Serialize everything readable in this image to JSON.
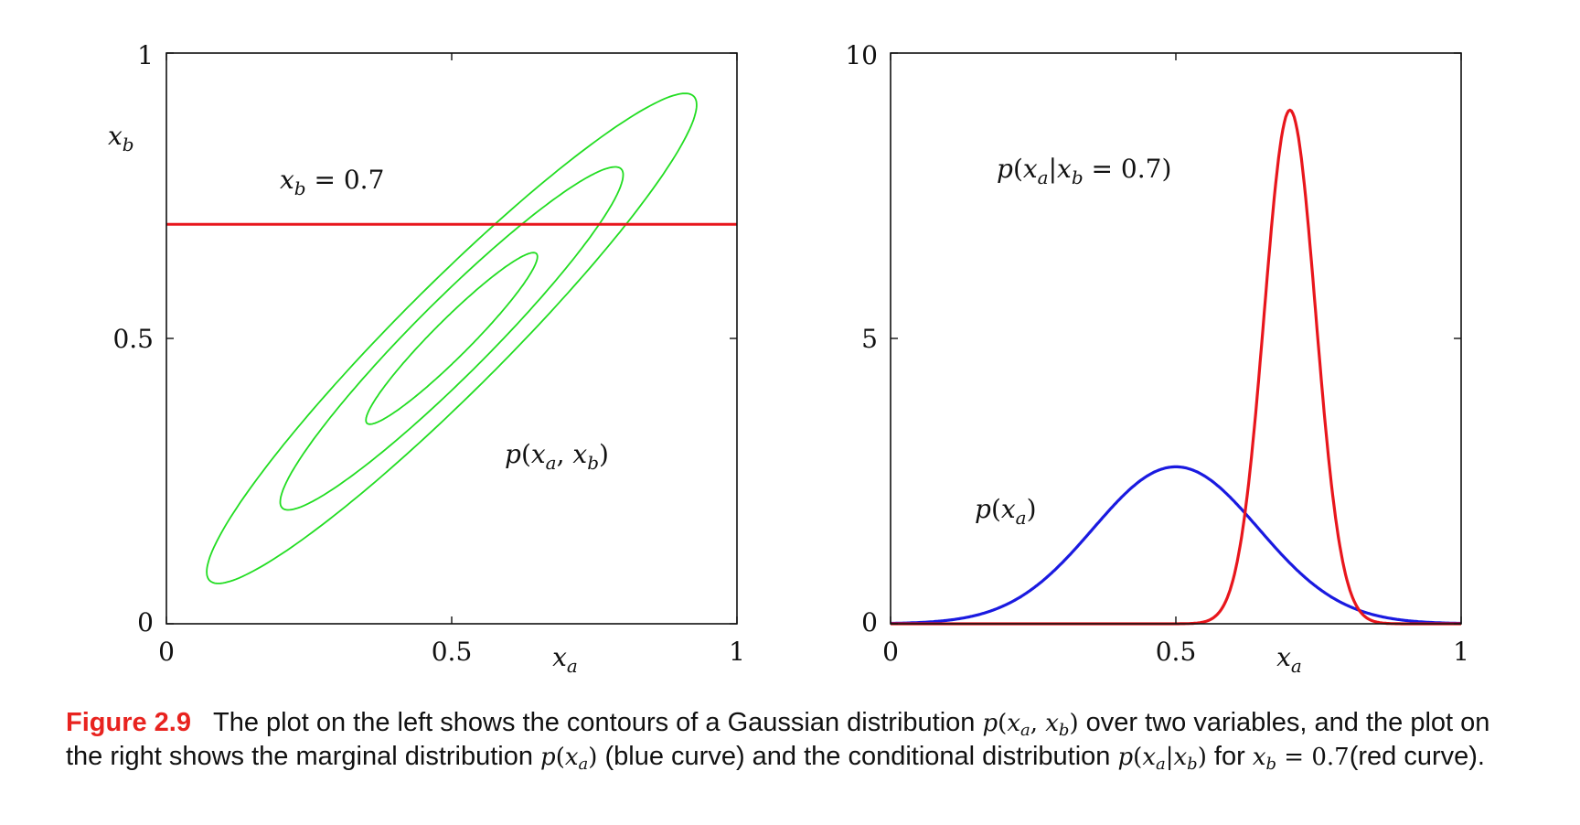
{
  "chart_data": [
    {
      "type": "line",
      "title": "",
      "xlabel": "x_a",
      "ylabel": "x_b",
      "xlim": [
        0,
        1
      ],
      "ylim": [
        0,
        1
      ],
      "xticks": [
        "0",
        "0.5",
        "1"
      ],
      "yticks": [
        "0",
        "0.5",
        "1"
      ],
      "grid": false,
      "contours": {
        "color": "#22dd22",
        "center": [
          0.5,
          0.5
        ],
        "major_axis_angle_deg": 45,
        "major_semi_axes": [
          0.21,
          0.42,
          0.6
        ],
        "axis_ratio": 0.155
      },
      "line_xb": {
        "y": 0.7,
        "color": "#e8161c"
      },
      "annotations": [
        {
          "text": "x_b = 0.7",
          "x": 0.2,
          "y": 0.78
        },
        {
          "text": "p(x_a, x_b)",
          "x": 0.6,
          "y": 0.3
        }
      ]
    },
    {
      "type": "line",
      "title": "",
      "xlabel": "x_a",
      "ylabel": "",
      "xlim": [
        0,
        1
      ],
      "ylim": [
        0,
        10
      ],
      "xticks": [
        "0",
        "0.5",
        "1"
      ],
      "yticks": [
        "0",
        "5",
        "10"
      ],
      "grid": false,
      "series": [
        {
          "label": "p(x_a)",
          "color": "#1a1ae0",
          "distribution": "gaussian",
          "mean": 0.5,
          "sd": 0.145,
          "peak": 2.75
        },
        {
          "label": "p(x_a|x_b = 0.7)",
          "color": "#e8161c",
          "distribution": "gaussian",
          "mean": 0.7,
          "sd": 0.045,
          "peak": 9.0
        }
      ],
      "annotations": [
        {
          "text": "p(x_a|x_b = 0.7)",
          "x": 0.37,
          "y": 8.2
        },
        {
          "text": "p(x_a)",
          "x": 0.17,
          "y": 1.9
        }
      ]
    }
  ],
  "caption": {
    "label": "Figure 2.9",
    "t1": "The plot on the left shows the contours of a Gaussian distribution",
    "t2": "over two variables, and the plot on the right shows the marginal distribution",
    "t3": "(blue curve) and the conditional distribution",
    "t4": "for",
    "t5": "(red curve)."
  }
}
